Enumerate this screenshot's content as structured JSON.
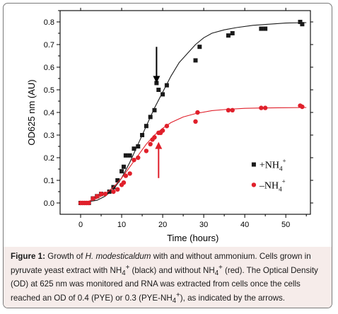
{
  "chart_data": {
    "type": "scatter",
    "xlabel": "Time (hours)",
    "ylabel": "OD625 nm (AU)",
    "xlim": [
      -5,
      56
    ],
    "ylim": [
      -0.05,
      0.85
    ],
    "xticks": [
      0,
      10,
      20,
      30,
      40,
      50
    ],
    "yticks": [
      0.0,
      0.1,
      0.2,
      0.3,
      0.4,
      0.5,
      0.6,
      0.7,
      0.8
    ],
    "ytick_labels": [
      "0.0",
      "0.1",
      "0.2",
      "0.3",
      "0.4",
      "0.5",
      "0.6",
      "0.7",
      "0.8"
    ],
    "legend_position": "right",
    "series": [
      {
        "legend_label": "+NH",
        "legend_sub": "4",
        "legend_sup": "+",
        "marker": "square",
        "color": "#1a1a1a",
        "points": [
          [
            0,
            0.0
          ],
          [
            0.5,
            0.0
          ],
          [
            1,
            0.0
          ],
          [
            2,
            0.0
          ],
          [
            3,
            0.02
          ],
          [
            4,
            0.03
          ],
          [
            5,
            0.04
          ],
          [
            7,
            0.05
          ],
          [
            8,
            0.07
          ],
          [
            9,
            0.1
          ],
          [
            10,
            0.14
          ],
          [
            10.5,
            0.16
          ],
          [
            11,
            0.21
          ],
          [
            12,
            0.21
          ],
          [
            13,
            0.24
          ],
          [
            14,
            0.25
          ],
          [
            15,
            0.3
          ],
          [
            16,
            0.34
          ],
          [
            17,
            0.38
          ],
          [
            18,
            0.41
          ],
          [
            18.5,
            0.53
          ],
          [
            19,
            0.5
          ],
          [
            20,
            0.48
          ],
          [
            21,
            0.52
          ],
          [
            28,
            0.63
          ],
          [
            29,
            0.69
          ],
          [
            36,
            0.74
          ],
          [
            37,
            0.75
          ],
          [
            44,
            0.77
          ],
          [
            45,
            0.77
          ],
          [
            53.5,
            0.8
          ],
          [
            54,
            0.79
          ]
        ],
        "fit": [
          [
            0,
            0.003
          ],
          [
            2,
            0.006
          ],
          [
            4,
            0.012
          ],
          [
            6,
            0.03
          ],
          [
            8,
            0.06
          ],
          [
            10,
            0.11
          ],
          [
            12,
            0.18
          ],
          [
            14,
            0.26
          ],
          [
            16,
            0.34
          ],
          [
            18,
            0.42
          ],
          [
            20,
            0.49
          ],
          [
            22,
            0.56
          ],
          [
            24,
            0.62
          ],
          [
            26,
            0.66
          ],
          [
            28,
            0.7
          ],
          [
            30,
            0.73
          ],
          [
            32,
            0.75
          ],
          [
            35,
            0.765
          ],
          [
            38,
            0.775
          ],
          [
            42,
            0.785
          ],
          [
            46,
            0.79
          ],
          [
            50,
            0.795
          ],
          [
            55,
            0.797
          ]
        ]
      },
      {
        "legend_label": "–NH",
        "legend_sub": "4",
        "legend_sup": "+",
        "marker": "circle",
        "color": "#e0202b",
        "points": [
          [
            0,
            0.0
          ],
          [
            0.5,
            0.0
          ],
          [
            1,
            0.0
          ],
          [
            1.5,
            0.0
          ],
          [
            2,
            0.0
          ],
          [
            3,
            0.02
          ],
          [
            4,
            0.03
          ],
          [
            5,
            0.04
          ],
          [
            6,
            0.04
          ],
          [
            8,
            0.05
          ],
          [
            9,
            0.06
          ],
          [
            10,
            0.08
          ],
          [
            10.5,
            0.09
          ],
          [
            11,
            0.12
          ],
          [
            12,
            0.13
          ],
          [
            13,
            0.19
          ],
          [
            14,
            0.2
          ],
          [
            16,
            0.23
          ],
          [
            17,
            0.26
          ],
          [
            17.5,
            0.28
          ],
          [
            18,
            0.29
          ],
          [
            19,
            0.31
          ],
          [
            19.5,
            0.31
          ],
          [
            20,
            0.32
          ],
          [
            21,
            0.34
          ],
          [
            28,
            0.36
          ],
          [
            28.5,
            0.4
          ],
          [
            36,
            0.41
          ],
          [
            37,
            0.41
          ],
          [
            44,
            0.42
          ],
          [
            45,
            0.42
          ],
          [
            53.5,
            0.43
          ],
          [
            54,
            0.425
          ]
        ],
        "fit": [
          [
            0,
            0.003
          ],
          [
            2,
            0.008
          ],
          [
            4,
            0.02
          ],
          [
            6,
            0.04
          ],
          [
            8,
            0.07
          ],
          [
            10,
            0.11
          ],
          [
            12,
            0.16
          ],
          [
            14,
            0.21
          ],
          [
            16,
            0.26
          ],
          [
            18,
            0.3
          ],
          [
            20,
            0.33
          ],
          [
            22,
            0.355
          ],
          [
            25,
            0.38
          ],
          [
            28,
            0.395
          ],
          [
            32,
            0.408
          ],
          [
            36,
            0.414
          ],
          [
            40,
            0.418
          ],
          [
            45,
            0.42
          ],
          [
            50,
            0.421
          ],
          [
            55,
            0.422
          ]
        ]
      }
    ],
    "annotations": [
      {
        "type": "arrow",
        "direction": "down",
        "color": "#000000",
        "x": 18.5,
        "y_from": 0.69,
        "y_to": 0.53
      },
      {
        "type": "arrow",
        "direction": "up",
        "color": "#e0202b",
        "x": 19,
        "y_from": 0.11,
        "y_to": 0.27
      }
    ]
  },
  "caption": {
    "label": "Figure 1:",
    "t1": " Growth of ",
    "organism": "H. modesticaldum",
    "t2": " with and without ammonium. Cells grown in pyruvate yeast extract with NH",
    "sub1": "4",
    "sup1": "+",
    "t3": " (black) and without NH",
    "sub2": "4",
    "sup2": "+",
    "t4": " (red). The Optical Density (OD) at 625 nm was monitored and RNA was extracted from cells once the cells reached an OD of 0.4 (PYE) or 0.3 (PYE-NH",
    "sub3": "4",
    "sup3": "+",
    "t5": "), as indicated by the arrows."
  }
}
